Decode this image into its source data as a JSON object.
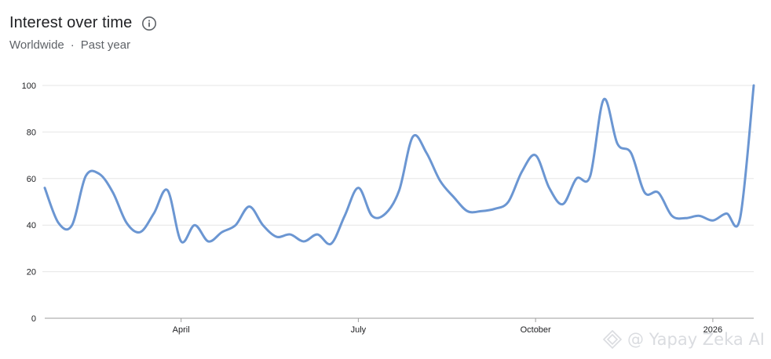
{
  "header": {
    "title": "Interest over time",
    "region": "Worldwide",
    "separator": "·",
    "period": "Past year",
    "info_icon": "info-icon"
  },
  "watermark": {
    "text": "@ Yapay Zeka AI",
    "logo_icon": "diamond-logo-icon"
  },
  "colors": {
    "line": "#6b96d2",
    "grid": "#e6e6e6",
    "axis": "#9e9e9e",
    "text": "#202124",
    "muted": "#5f6368"
  },
  "chart_data": {
    "type": "line",
    "title": "Interest over time",
    "xlabel": "",
    "ylabel": "",
    "ylim": [
      0,
      100
    ],
    "yticks": [
      "0",
      "20",
      "40",
      "60",
      "80",
      "100"
    ],
    "xticks": [
      {
        "label": "April",
        "index": 10
      },
      {
        "label": "July",
        "index": 23
      },
      {
        "label": "October",
        "index": 36
      },
      {
        "label": "2026",
        "index": 49
      }
    ],
    "grid": true,
    "series": [
      {
        "values": [
          56,
          41,
          40,
          61,
          62,
          54,
          41,
          37,
          45,
          55,
          33,
          40,
          33,
          37,
          40,
          48,
          40,
          35,
          36,
          33,
          36,
          32,
          44,
          56,
          44,
          45,
          55,
          78,
          71,
          59,
          52,
          46,
          46,
          47,
          50,
          63,
          70,
          56,
          49,
          60,
          61,
          94,
          75,
          71,
          54,
          54,
          44,
          43,
          44,
          42,
          45,
          43,
          100
        ]
      }
    ]
  }
}
